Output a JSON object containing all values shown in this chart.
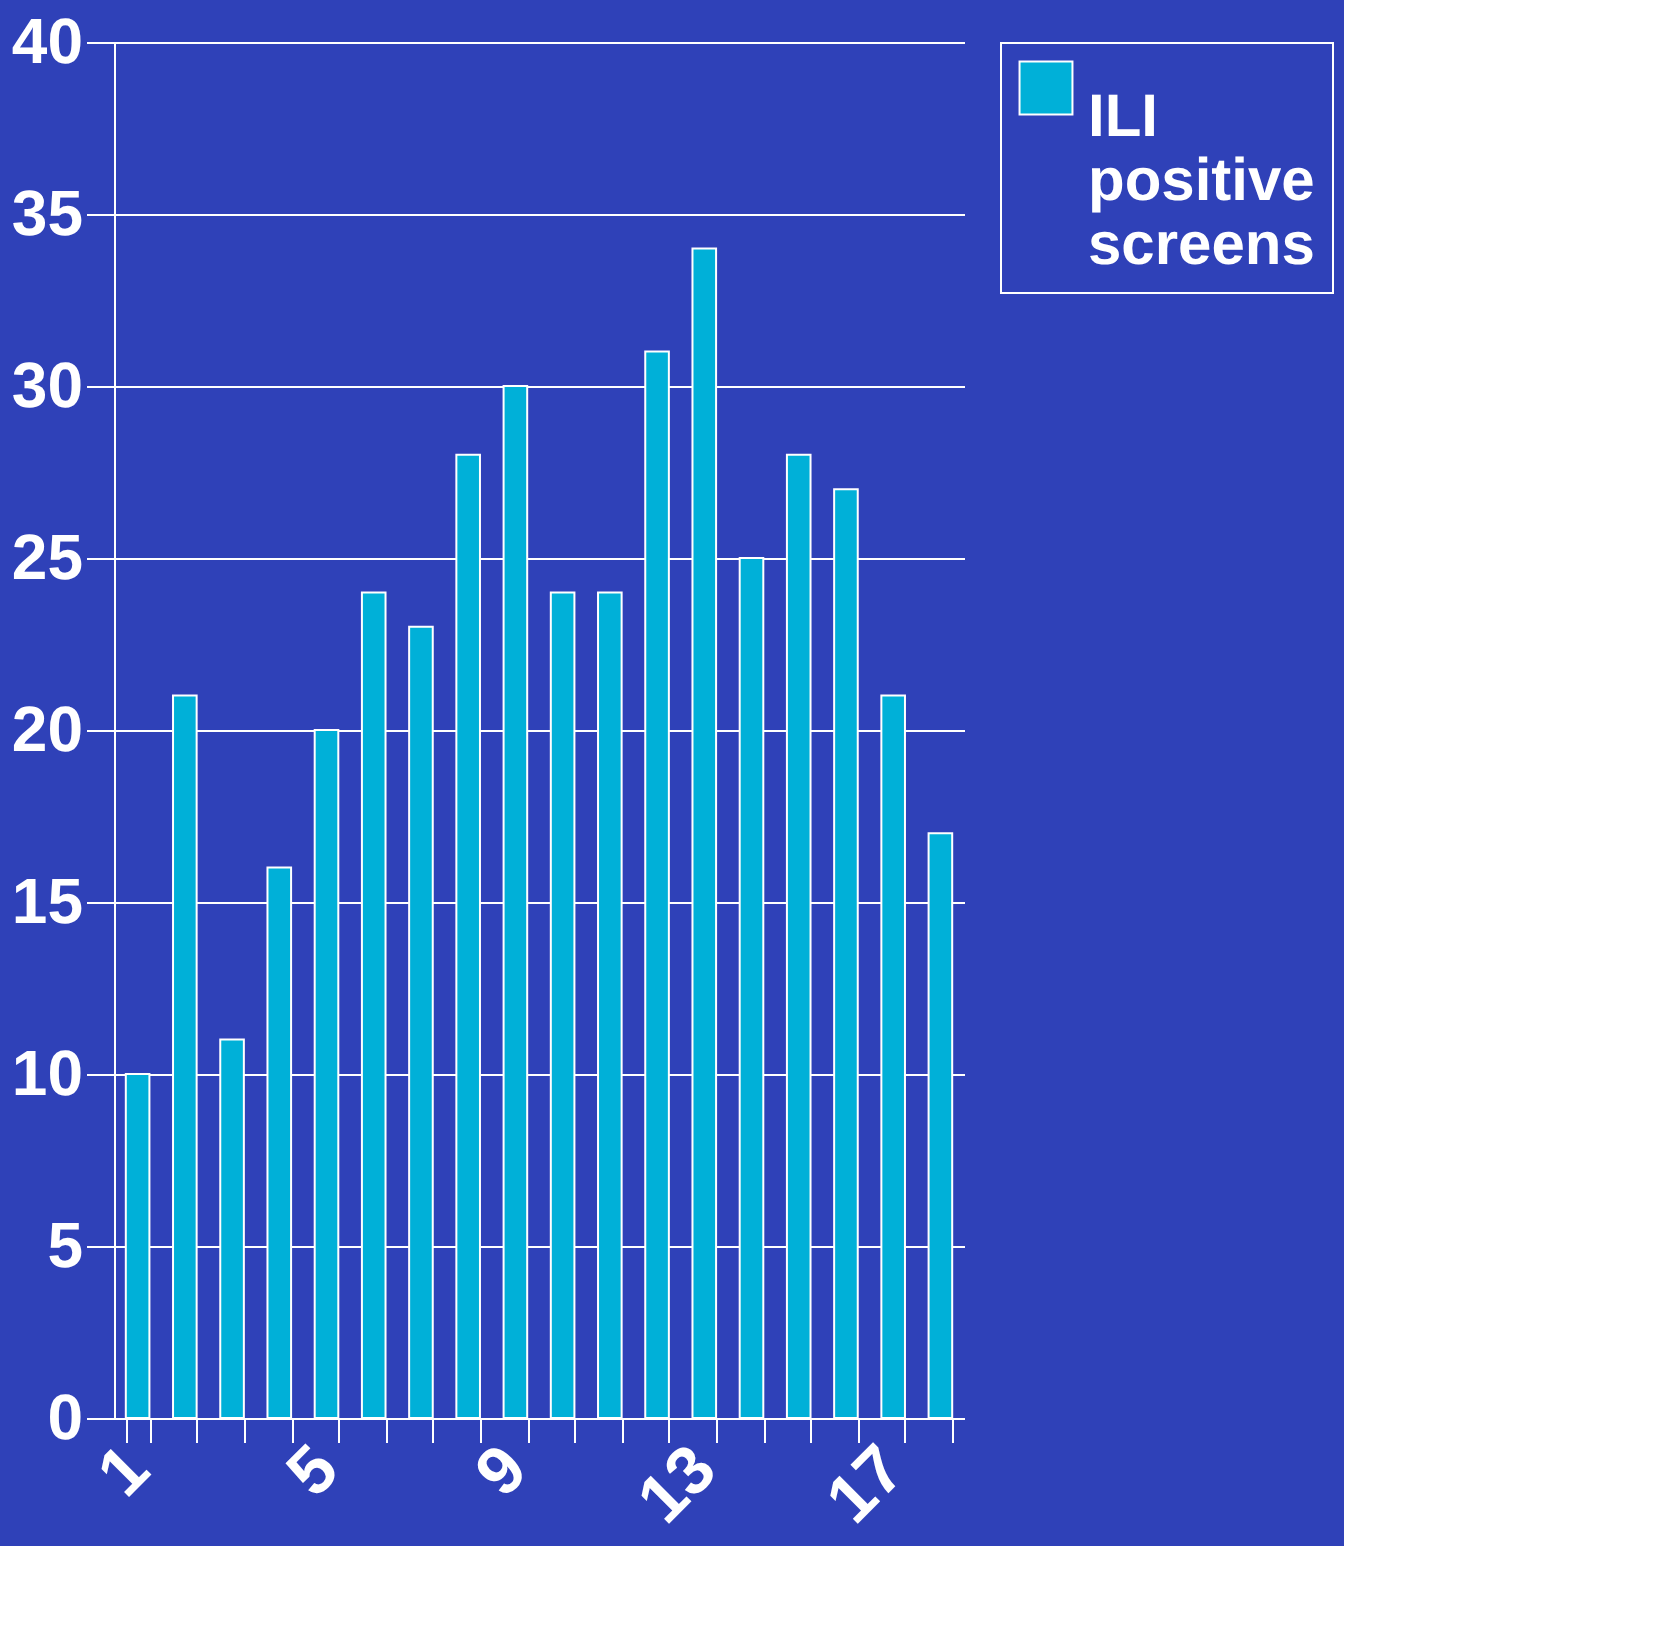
{
  "chart_data": {
    "type": "bar",
    "categories": [
      "1",
      null,
      null,
      null,
      "5",
      null,
      null,
      null,
      "9",
      null,
      null,
      null,
      "13",
      null,
      null,
      null,
      "17",
      null
    ],
    "series": [
      {
        "name": "ILI positive screens",
        "color": "#00b0d8",
        "values": [
          10,
          21,
          11,
          16,
          20,
          24,
          23,
          28,
          30,
          24,
          24,
          31,
          34,
          25,
          28,
          27,
          21,
          17
        ]
      }
    ],
    "ylim": [
      0,
      40
    ],
    "yticks": [
      0,
      5,
      10,
      15,
      20,
      25,
      30,
      35,
      40
    ],
    "grid": "y",
    "legend": "right"
  }
}
